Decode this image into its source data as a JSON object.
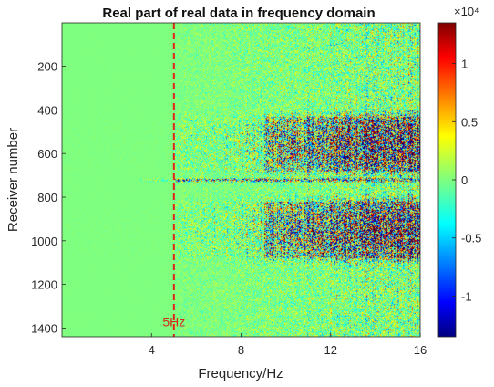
{
  "chart_data": {
    "type": "heatmap",
    "title": "Real part of real data in frequency domain",
    "xlabel": "Frequency/Hz",
    "ylabel": "Receiver number",
    "xlim": [
      0,
      16
    ],
    "ylim": [
      1,
      1440
    ],
    "y_reversed": true,
    "x_ticks": [
      4,
      8,
      12,
      16
    ],
    "y_ticks": [
      200,
      400,
      600,
      800,
      1000,
      1200,
      1400
    ],
    "colormap": "jet",
    "color_range": [
      -13500,
      13500
    ],
    "colorbar": {
      "ticks": [
        -10000,
        -5000,
        0,
        5000,
        10000
      ],
      "tick_labels": [
        "-1",
        "-0.5",
        "0",
        "0.5",
        "1"
      ],
      "exponent_label": "×10⁴"
    },
    "annotations": [
      {
        "type": "vertical_line",
        "x": 5,
        "color": "#e0241c",
        "style": "dashed",
        "label": "5Hz"
      }
    ],
    "features": {
      "bright_row_receiver": 720,
      "high_amplitude_bands": [
        [
          430,
          680
        ],
        [
          820,
          1080
        ]
      ],
      "high_amplitude_frequency_start": 10
    }
  }
}
